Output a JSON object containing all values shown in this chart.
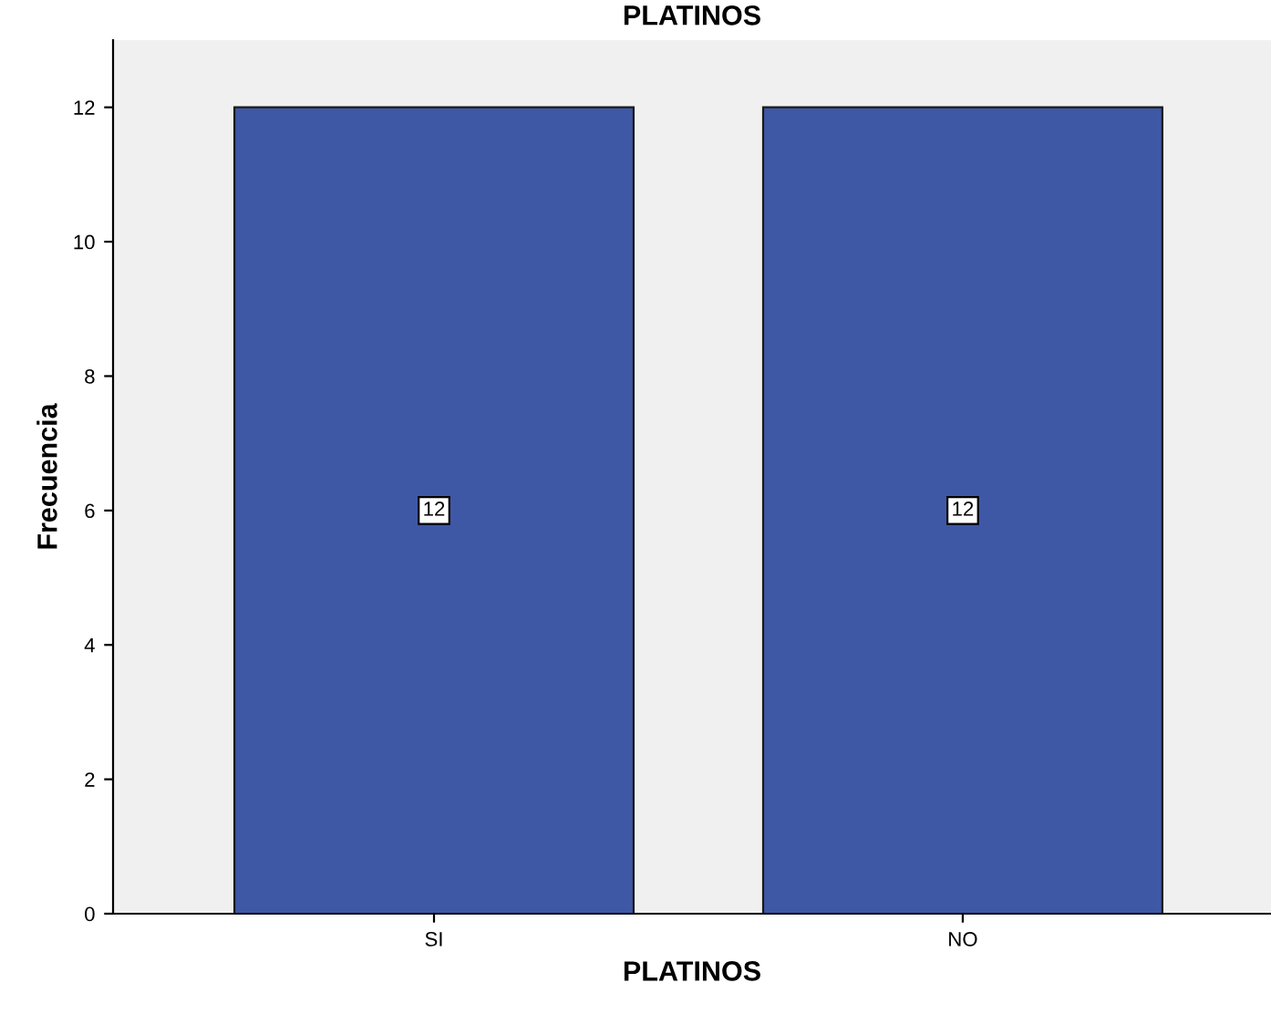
{
  "chart_data": {
    "type": "bar",
    "title": "PLATINOS",
    "xlabel": "PLATINOS",
    "ylabel": "Frecuencia",
    "categories": [
      "SI",
      "NO"
    ],
    "values": [
      12,
      12
    ],
    "color": "#3e58a6",
    "ylim": [
      0,
      13
    ],
    "yticks": [
      0,
      2,
      4,
      6,
      8,
      10,
      12
    ],
    "data_labels": true,
    "grid": false,
    "legend": false
  }
}
